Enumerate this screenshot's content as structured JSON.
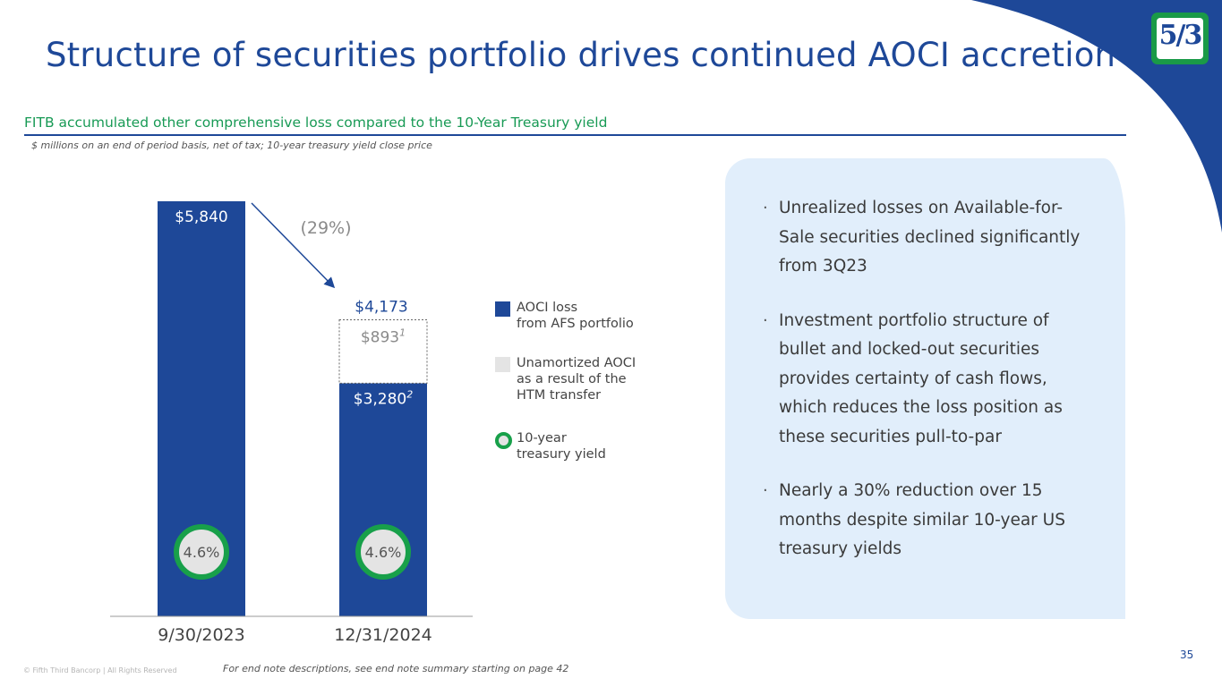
{
  "header": {
    "title": "Structure of securities portfolio drives continued AOCI accretion",
    "subtitle": "FITB accumulated other comprehensive loss compared to the 10-Year Treasury yield",
    "units_note": "$ millions on an end of period basis, net of tax; 10-year treasury yield close price",
    "logo_text": "5/3"
  },
  "colors": {
    "brand_blue": "#1e4898",
    "brand_green": "#18a04a",
    "unamortized_gray": "#e4e4e4",
    "panel_bg": "#e1eefb"
  },
  "chart_data": {
    "type": "bar",
    "stacked": true,
    "categories": [
      "9/30/2023",
      "12/31/2024"
    ],
    "series": [
      {
        "name": "AOCI loss from AFS portfolio",
        "values": [
          5840,
          3280
        ],
        "labels": [
          "$5,840",
          "$3,280"
        ],
        "superscripts": [
          "",
          "2"
        ]
      },
      {
        "name": "Unamortized AOCI as a result of the HTM transfer",
        "values": [
          0,
          893
        ],
        "labels": [
          "",
          "$893"
        ],
        "superscripts": [
          "",
          "1"
        ]
      }
    ],
    "totals": [
      5840,
      4173
    ],
    "total_labels": [
      "",
      "$4,173"
    ],
    "yield": {
      "name": "10-year treasury yield",
      "values": [
        4.6,
        4.6
      ],
      "labels": [
        "4.6%",
        "4.6%"
      ]
    },
    "change_label": "(29%)",
    "ylim": [
      0,
      5840
    ],
    "xlabel": "",
    "ylabel": ""
  },
  "legend": [
    {
      "label": "AOCI loss\nfrom AFS portfolio"
    },
    {
      "label": "Unamortized AOCI\nas a result of the\nHTM transfer"
    },
    {
      "label": "10-year\ntreasury yield"
    }
  ],
  "bullets": [
    "Unrealized losses on Available-for-Sale securities declined significantly from 3Q23",
    "Investment portfolio structure of bullet and locked-out securities provides certainty of cash flows, which reduces the loss position as these securities pull-to-par",
    "Nearly a 30% reduction over 15 months despite similar 10-year US treasury yields"
  ],
  "footer": {
    "copyright": "© Fifth Third Bancorp | All Rights Reserved",
    "endnote": "For end note descriptions, see end note summary starting on page 42",
    "page_number": "35"
  }
}
